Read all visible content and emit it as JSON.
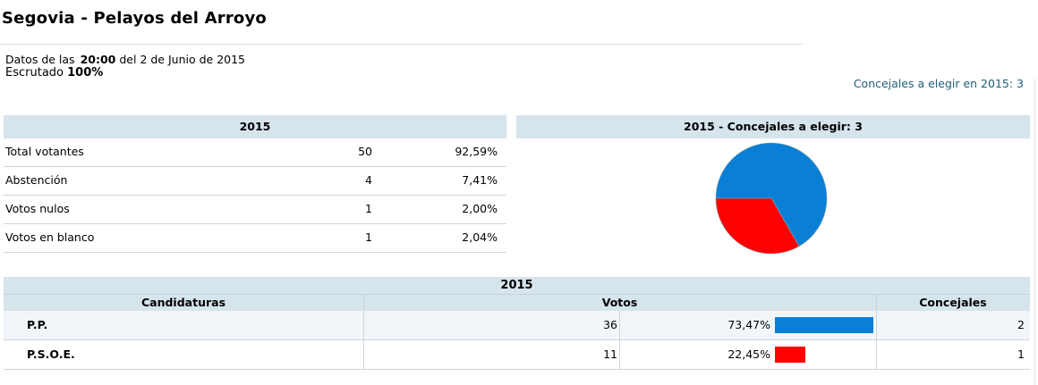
{
  "header": {
    "title": "Segovia - Pelayos del Arroyo",
    "datos_prefix": "Datos de las",
    "time": "20:00",
    "date_suffix": "del 2 de Junio de 2015",
    "escrutado_label": "Escrutado",
    "escrutado_value": "100%",
    "concejales_note": "Concejales a elegir en 2015: 3"
  },
  "summary": {
    "year": "2015",
    "rows": [
      {
        "label": "Total votantes",
        "count": "50",
        "percent": "92,59%"
      },
      {
        "label": "Abstención",
        "count": "4",
        "percent": "7,41%"
      },
      {
        "label": "Votos nulos",
        "count": "1",
        "percent": "2,00%"
      },
      {
        "label": "Votos en blanco",
        "count": "1",
        "percent": "2,04%"
      }
    ]
  },
  "chart_data": {
    "type": "pie",
    "title": "2015 - Concejales a elegir: 3",
    "slices": [
      {
        "party": "P.P.",
        "value": 2,
        "color": "#0a7fd6"
      },
      {
        "party": "P.S.O.E.",
        "value": 1,
        "color": "#ff0000"
      }
    ]
  },
  "results": {
    "year": "2015",
    "columns": {
      "party": "Candidaturas",
      "votes": "Votos",
      "seats": "Concejales"
    },
    "rows": [
      {
        "party": "P.P.",
        "votes": "36",
        "percent": "73,47%",
        "share": 73.47,
        "seats": "2",
        "color": "#0a7fd6"
      },
      {
        "party": "P.S.O.E.",
        "votes": "11",
        "percent": "22,45%",
        "share": 22.45,
        "seats": "1",
        "color": "#ff0000"
      }
    ]
  }
}
